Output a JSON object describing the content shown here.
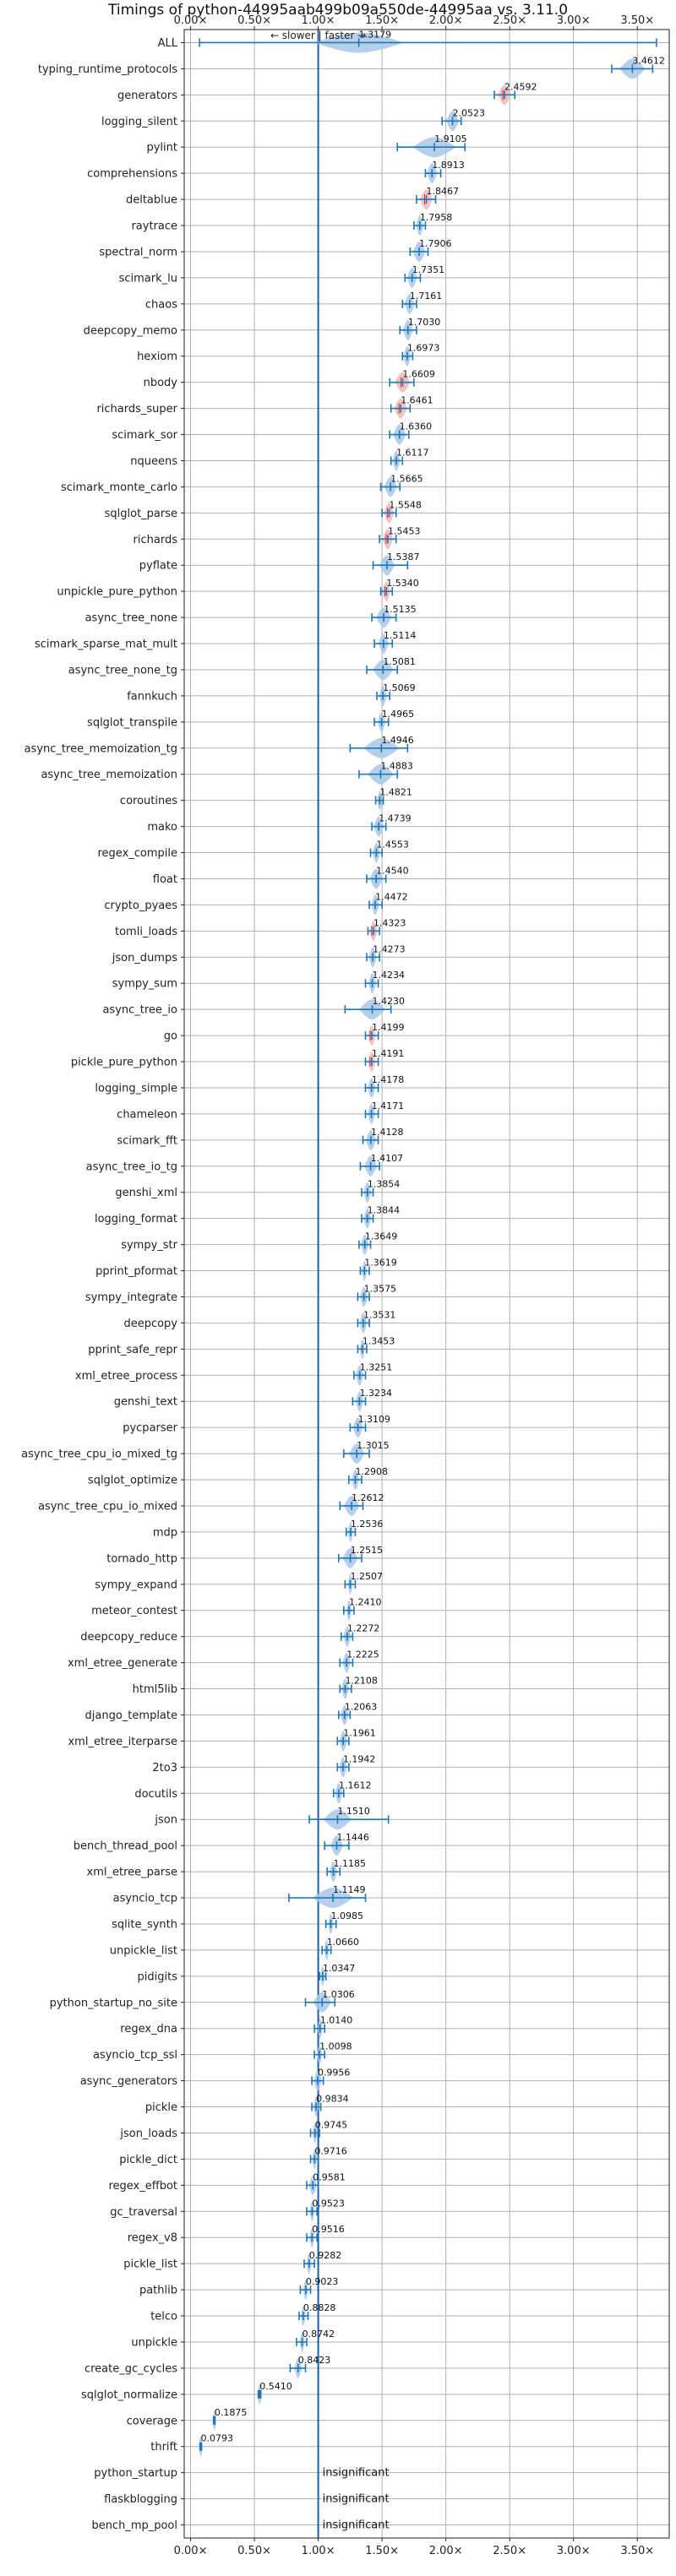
{
  "chart_data": {
    "type": "violin",
    "title": "Timings of python-44995aab499b09a550de-44995aa vs. 3.11.0",
    "direction_note": "← slower | faster →",
    "xlim": [
      -0.05,
      3.75
    ],
    "reference_line": 1.0,
    "x_ticks": [
      0.0,
      0.5,
      1.0,
      1.5,
      2.0,
      2.5,
      3.0,
      3.5
    ],
    "x_tick_labels": [
      "0.00×",
      "0.50×",
      "1.00×",
      "1.50×",
      "2.00×",
      "2.50×",
      "3.00×",
      "3.50×"
    ],
    "grid": true,
    "insignificant_label": "insignificant",
    "benchmarks": [
      {
        "name": "ALL",
        "value": 1.3179,
        "label": "1.3179",
        "min": 0.07,
        "max": 3.65,
        "spread": 0.35
      },
      {
        "name": "typing_runtime_protocols",
        "value": 3.4612,
        "label": "3.4612",
        "min": 3.3,
        "max": 3.62,
        "spread": 0.1
      },
      {
        "name": "generators",
        "value": 2.4592,
        "label": "2.4592",
        "min": 2.38,
        "max": 2.54,
        "spread": 0.05,
        "color": "red"
      },
      {
        "name": "logging_silent",
        "value": 2.0523,
        "label": "2.0523",
        "min": 1.97,
        "max": 2.12,
        "spread": 0.05
      },
      {
        "name": "pylint",
        "value": 1.9105,
        "label": "1.9105",
        "min": 1.62,
        "max": 2.15,
        "spread": 0.17
      },
      {
        "name": "comprehensions",
        "value": 1.8913,
        "label": "1.8913",
        "min": 1.84,
        "max": 1.96,
        "spread": 0.04
      },
      {
        "name": "deltablue",
        "value": 1.8467,
        "label": "1.8467",
        "min": 1.77,
        "max": 1.92,
        "spread": 0.05,
        "color": "red"
      },
      {
        "name": "raytrace",
        "value": 1.7958,
        "label": "1.7958",
        "min": 1.75,
        "max": 1.84,
        "spread": 0.03
      },
      {
        "name": "spectral_norm",
        "value": 1.7906,
        "label": "1.7906",
        "min": 1.72,
        "max": 1.86,
        "spread": 0.05
      },
      {
        "name": "scimark_lu",
        "value": 1.7351,
        "label": "1.7351",
        "min": 1.68,
        "max": 1.8,
        "spread": 0.04
      },
      {
        "name": "chaos",
        "value": 1.7161,
        "label": "1.7161",
        "min": 1.66,
        "max": 1.77,
        "spread": 0.04
      },
      {
        "name": "deepcopy_memo",
        "value": 1.703,
        "label": "1.7030",
        "min": 1.64,
        "max": 1.77,
        "spread": 0.04
      },
      {
        "name": "hexiom",
        "value": 1.6973,
        "label": "1.6973",
        "min": 1.66,
        "max": 1.74,
        "spread": 0.03
      },
      {
        "name": "nbody",
        "value": 1.6609,
        "label": "1.6609",
        "min": 1.56,
        "max": 1.75,
        "spread": 0.06,
        "color": "red"
      },
      {
        "name": "richards_super",
        "value": 1.6461,
        "label": "1.6461",
        "min": 1.57,
        "max": 1.72,
        "spread": 0.05,
        "color": "red"
      },
      {
        "name": "scimark_sor",
        "value": 1.636,
        "label": "1.6360",
        "min": 1.56,
        "max": 1.71,
        "spread": 0.05
      },
      {
        "name": "nqueens",
        "value": 1.6117,
        "label": "1.6117",
        "min": 1.57,
        "max": 1.66,
        "spread": 0.03
      },
      {
        "name": "scimark_monte_carlo",
        "value": 1.5665,
        "label": "1.5665",
        "min": 1.49,
        "max": 1.64,
        "spread": 0.05
      },
      {
        "name": "sqlglot_parse",
        "value": 1.5548,
        "label": "1.5548",
        "min": 1.5,
        "max": 1.61,
        "spread": 0.04,
        "color": "red"
      },
      {
        "name": "richards",
        "value": 1.5453,
        "label": "1.5453",
        "min": 1.48,
        "max": 1.61,
        "spread": 0.04,
        "color": "red"
      },
      {
        "name": "pyflate",
        "value": 1.5387,
        "label": "1.5387",
        "min": 1.43,
        "max": 1.7,
        "spread": 0.06
      },
      {
        "name": "unpickle_pure_python",
        "value": 1.534,
        "label": "1.5340",
        "min": 1.49,
        "max": 1.58,
        "spread": 0.03,
        "color": "red"
      },
      {
        "name": "async_tree_none",
        "value": 1.5135,
        "label": "1.5135",
        "min": 1.42,
        "max": 1.61,
        "spread": 0.06
      },
      {
        "name": "scimark_sparse_mat_mult",
        "value": 1.5114,
        "label": "1.5114",
        "min": 1.44,
        "max": 1.58,
        "spread": 0.04
      },
      {
        "name": "async_tree_none_tg",
        "value": 1.5081,
        "label": "1.5081",
        "min": 1.38,
        "max": 1.62,
        "spread": 0.08
      },
      {
        "name": "fannkuch",
        "value": 1.5069,
        "label": "1.5069",
        "min": 1.46,
        "max": 1.56,
        "spread": 0.03
      },
      {
        "name": "sqlglot_transpile",
        "value": 1.4965,
        "label": "1.4965",
        "min": 1.44,
        "max": 1.55,
        "spread": 0.03
      },
      {
        "name": "async_tree_memoization_tg",
        "value": 1.4946,
        "label": "1.4946",
        "min": 1.25,
        "max": 1.7,
        "spread": 0.14
      },
      {
        "name": "async_tree_memoization",
        "value": 1.4883,
        "label": "1.4883",
        "min": 1.32,
        "max": 1.62,
        "spread": 0.1
      },
      {
        "name": "coroutines",
        "value": 1.4821,
        "label": "1.4821",
        "min": 1.45,
        "max": 1.51,
        "spread": 0.02
      },
      {
        "name": "mako",
        "value": 1.4739,
        "label": "1.4739",
        "min": 1.42,
        "max": 1.53,
        "spread": 0.04
      },
      {
        "name": "regex_compile",
        "value": 1.4553,
        "label": "1.4553",
        "min": 1.41,
        "max": 1.5,
        "spread": 0.03
      },
      {
        "name": "float",
        "value": 1.454,
        "label": "1.4540",
        "min": 1.38,
        "max": 1.53,
        "spread": 0.05
      },
      {
        "name": "crypto_pyaes",
        "value": 1.4472,
        "label": "1.4472",
        "min": 1.4,
        "max": 1.5,
        "spread": 0.03
      },
      {
        "name": "tomli_loads",
        "value": 1.4323,
        "label": "1.4323",
        "min": 1.39,
        "max": 1.48,
        "spread": 0.03,
        "color": "red"
      },
      {
        "name": "json_dumps",
        "value": 1.4273,
        "label": "1.4273",
        "min": 1.38,
        "max": 1.48,
        "spread": 0.03
      },
      {
        "name": "sympy_sum",
        "value": 1.4234,
        "label": "1.4234",
        "min": 1.37,
        "max": 1.47,
        "spread": 0.03
      },
      {
        "name": "async_tree_io",
        "value": 1.423,
        "label": "1.4230",
        "min": 1.21,
        "max": 1.57,
        "spread": 0.1
      },
      {
        "name": "go",
        "value": 1.4199,
        "label": "1.4199",
        "min": 1.37,
        "max": 1.47,
        "spread": 0.03,
        "color": "red"
      },
      {
        "name": "pickle_pure_python",
        "value": 1.4191,
        "label": "1.4191",
        "min": 1.37,
        "max": 1.47,
        "spread": 0.03,
        "color": "red"
      },
      {
        "name": "logging_simple",
        "value": 1.4178,
        "label": "1.4178",
        "min": 1.37,
        "max": 1.47,
        "spread": 0.03
      },
      {
        "name": "chameleon",
        "value": 1.4171,
        "label": "1.4171",
        "min": 1.37,
        "max": 1.47,
        "spread": 0.03
      },
      {
        "name": "scimark_fft",
        "value": 1.4128,
        "label": "1.4128",
        "min": 1.35,
        "max": 1.47,
        "spread": 0.04
      },
      {
        "name": "async_tree_io_tg",
        "value": 1.4107,
        "label": "1.4107",
        "min": 1.33,
        "max": 1.48,
        "spread": 0.05
      },
      {
        "name": "genshi_xml",
        "value": 1.3854,
        "label": "1.3854",
        "min": 1.34,
        "max": 1.43,
        "spread": 0.03
      },
      {
        "name": "logging_format",
        "value": 1.3844,
        "label": "1.3844",
        "min": 1.34,
        "max": 1.43,
        "spread": 0.03
      },
      {
        "name": "sympy_str",
        "value": 1.3649,
        "label": "1.3649",
        "min": 1.32,
        "max": 1.41,
        "spread": 0.03
      },
      {
        "name": "pprint_pformat",
        "value": 1.3619,
        "label": "1.3619",
        "min": 1.33,
        "max": 1.4,
        "spread": 0.02
      },
      {
        "name": "sympy_integrate",
        "value": 1.3575,
        "label": "1.3575",
        "min": 1.31,
        "max": 1.4,
        "spread": 0.03
      },
      {
        "name": "deepcopy",
        "value": 1.3531,
        "label": "1.3531",
        "min": 1.31,
        "max": 1.4,
        "spread": 0.03
      },
      {
        "name": "pprint_safe_repr",
        "value": 1.3453,
        "label": "1.3453",
        "min": 1.31,
        "max": 1.38,
        "spread": 0.02
      },
      {
        "name": "xml_etree_process",
        "value": 1.3251,
        "label": "1.3251",
        "min": 1.28,
        "max": 1.37,
        "spread": 0.03
      },
      {
        "name": "genshi_text",
        "value": 1.3234,
        "label": "1.3234",
        "min": 1.27,
        "max": 1.37,
        "spread": 0.03
      },
      {
        "name": "pycparser",
        "value": 1.3109,
        "label": "1.3109",
        "min": 1.25,
        "max": 1.37,
        "spread": 0.04
      },
      {
        "name": "async_tree_cpu_io_mixed_tg",
        "value": 1.3015,
        "label": "1.3015",
        "min": 1.2,
        "max": 1.4,
        "spread": 0.06
      },
      {
        "name": "sqlglot_optimize",
        "value": 1.2908,
        "label": "1.2908",
        "min": 1.24,
        "max": 1.34,
        "spread": 0.03
      },
      {
        "name": "async_tree_cpu_io_mixed",
        "value": 1.2612,
        "label": "1.2612",
        "min": 1.17,
        "max": 1.35,
        "spread": 0.06
      },
      {
        "name": "mdp",
        "value": 1.2536,
        "label": "1.2536",
        "min": 1.22,
        "max": 1.29,
        "spread": 0.02
      },
      {
        "name": "tornado_http",
        "value": 1.2515,
        "label": "1.2515",
        "min": 1.16,
        "max": 1.34,
        "spread": 0.06
      },
      {
        "name": "sympy_expand",
        "value": 1.2507,
        "label": "1.2507",
        "min": 1.21,
        "max": 1.29,
        "spread": 0.02
      },
      {
        "name": "meteor_contest",
        "value": 1.241,
        "label": "1.2410",
        "min": 1.2,
        "max": 1.28,
        "spread": 0.02
      },
      {
        "name": "deepcopy_reduce",
        "value": 1.2272,
        "label": "1.2272",
        "min": 1.18,
        "max": 1.27,
        "spread": 0.03
      },
      {
        "name": "xml_etree_generate",
        "value": 1.2225,
        "label": "1.2225",
        "min": 1.17,
        "max": 1.27,
        "spread": 0.03
      },
      {
        "name": "html5lib",
        "value": 1.2108,
        "label": "1.2108",
        "min": 1.17,
        "max": 1.26,
        "spread": 0.03
      },
      {
        "name": "django_template",
        "value": 1.2063,
        "label": "1.2063",
        "min": 1.16,
        "max": 1.25,
        "spread": 0.03
      },
      {
        "name": "xml_etree_iterparse",
        "value": 1.1961,
        "label": "1.1961",
        "min": 1.15,
        "max": 1.24,
        "spread": 0.03
      },
      {
        "name": "2to3",
        "value": 1.1942,
        "label": "1.1942",
        "min": 1.15,
        "max": 1.24,
        "spread": 0.03
      },
      {
        "name": "docutils",
        "value": 1.1612,
        "label": "1.1612",
        "min": 1.12,
        "max": 1.2,
        "spread": 0.03
      },
      {
        "name": "json",
        "value": 1.151,
        "label": "1.1510",
        "min": 0.93,
        "max": 1.55,
        "spread": 0.11
      },
      {
        "name": "bench_thread_pool",
        "value": 1.1446,
        "label": "1.1446",
        "min": 1.05,
        "max": 1.24,
        "spread": 0.05
      },
      {
        "name": "xml_etree_parse",
        "value": 1.1185,
        "label": "1.1185",
        "min": 1.07,
        "max": 1.17,
        "spread": 0.03
      },
      {
        "name": "asyncio_tcp",
        "value": 1.1149,
        "label": "1.1149",
        "min": 0.77,
        "max": 1.37,
        "spread": 0.16
      },
      {
        "name": "sqlite_synth",
        "value": 1.0985,
        "label": "1.0985",
        "min": 1.06,
        "max": 1.14,
        "spread": 0.02
      },
      {
        "name": "unpickle_list",
        "value": 1.066,
        "label": "1.0660",
        "min": 1.03,
        "max": 1.1,
        "spread": 0.02
      },
      {
        "name": "pidigits",
        "value": 1.0347,
        "label": "1.0347",
        "min": 1.01,
        "max": 1.06,
        "spread": 0.02
      },
      {
        "name": "python_startup_no_site",
        "value": 1.0306,
        "label": "1.0306",
        "min": 0.9,
        "max": 1.13,
        "spread": 0.07
      },
      {
        "name": "regex_dna",
        "value": 1.014,
        "label": "1.0140",
        "min": 0.97,
        "max": 1.05,
        "spread": 0.02
      },
      {
        "name": "asyncio_tcp_ssl",
        "value": 1.0098,
        "label": "1.0098",
        "min": 0.97,
        "max": 1.05,
        "spread": 0.02
      },
      {
        "name": "async_generators",
        "value": 0.9956,
        "label": "0.9956",
        "min": 0.95,
        "max": 1.04,
        "spread": 0.03
      },
      {
        "name": "pickle",
        "value": 0.9834,
        "label": "0.9834",
        "min": 0.95,
        "max": 1.02,
        "spread": 0.02
      },
      {
        "name": "json_loads",
        "value": 0.9745,
        "label": "0.9745",
        "min": 0.94,
        "max": 1.01,
        "spread": 0.02
      },
      {
        "name": "pickle_dict",
        "value": 0.9716,
        "label": "0.9716",
        "min": 0.94,
        "max": 1.0,
        "spread": 0.02
      },
      {
        "name": "regex_effbot",
        "value": 0.9581,
        "label": "0.9581",
        "min": 0.91,
        "max": 1.0,
        "spread": 0.03
      },
      {
        "name": "gc_traversal",
        "value": 0.9523,
        "label": "0.9523",
        "min": 0.91,
        "max": 0.99,
        "spread": 0.02
      },
      {
        "name": "regex_v8",
        "value": 0.9516,
        "label": "0.9516",
        "min": 0.91,
        "max": 0.99,
        "spread": 0.02
      },
      {
        "name": "pickle_list",
        "value": 0.9282,
        "label": "0.9282",
        "min": 0.89,
        "max": 0.97,
        "spread": 0.02
      },
      {
        "name": "pathlib",
        "value": 0.9023,
        "label": "0.9023",
        "min": 0.86,
        "max": 0.94,
        "spread": 0.02
      },
      {
        "name": "telco",
        "value": 0.8828,
        "label": "0.8828",
        "min": 0.85,
        "max": 0.92,
        "spread": 0.02
      },
      {
        "name": "unpickle",
        "value": 0.8742,
        "label": "0.8742",
        "min": 0.83,
        "max": 0.91,
        "spread": 0.02
      },
      {
        "name": "create_gc_cycles",
        "value": 0.8423,
        "label": "0.8423",
        "min": 0.78,
        "max": 0.9,
        "spread": 0.03
      },
      {
        "name": "sqlglot_normalize",
        "value": 0.541,
        "label": "0.5410",
        "min": 0.53,
        "max": 0.55,
        "spread": 0.01
      },
      {
        "name": "coverage",
        "value": 0.1875,
        "label": "0.1875",
        "min": 0.18,
        "max": 0.19,
        "spread": 0.006
      },
      {
        "name": "thrift",
        "value": 0.0793,
        "label": "0.0793",
        "min": 0.075,
        "max": 0.085,
        "spread": 0.005
      },
      {
        "name": "python_startup",
        "insignificant": true
      },
      {
        "name": "flaskblogging",
        "insignificant": true
      },
      {
        "name": "bench_mp_pool",
        "insignificant": true
      }
    ],
    "colors": {
      "violin": "#a9c8e8",
      "violin_red": "#f0b8b8",
      "whisker": "#1f77b4",
      "reference": "#1f5fa0",
      "median": "#e03030"
    }
  }
}
